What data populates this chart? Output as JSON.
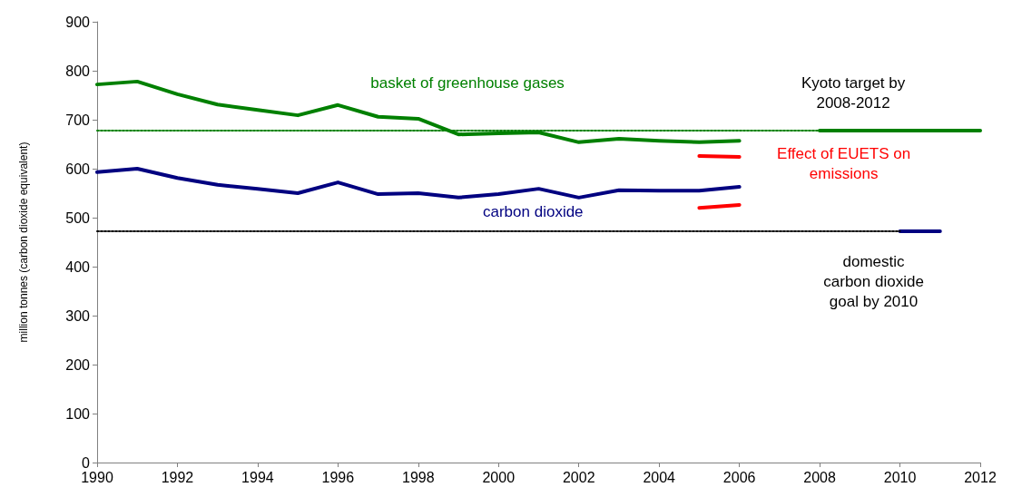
{
  "chart_data": {
    "type": "line",
    "ylabel": "million tonnes (carbon dioxide equivalent)",
    "xlim": [
      1990,
      2012
    ],
    "xticks": [
      1990,
      1992,
      1994,
      1996,
      1998,
      2000,
      2002,
      2004,
      2006,
      2008,
      2010,
      2012
    ],
    "ylim": [
      0,
      900
    ],
    "yticks": [
      0,
      100,
      200,
      300,
      400,
      500,
      600,
      700,
      800,
      900
    ],
    "grid": false,
    "marker": "none",
    "series": [
      {
        "name": "basket of greenhouse gases",
        "color": "#008000",
        "x": [
          1990,
          1991,
          1992,
          1993,
          1994,
          1995,
          1996,
          1997,
          1998,
          1999,
          2000,
          2001,
          2002,
          2003,
          2004,
          2005,
          2006
        ],
        "values": [
          772,
          778,
          752,
          731,
          720,
          709,
          730,
          706,
          702,
          670,
          672,
          674,
          654,
          661,
          657,
          654,
          657
        ]
      },
      {
        "name": "carbon dioxide",
        "color": "#000080",
        "x": [
          1990,
          1991,
          1992,
          1993,
          1994,
          1995,
          1996,
          1997,
          1998,
          1999,
          2000,
          2001,
          2002,
          2003,
          2004,
          2005,
          2006
        ],
        "values": [
          593,
          600,
          581,
          567,
          559,
          550,
          572,
          548,
          550,
          541,
          548,
          559,
          541,
          556,
          555,
          555,
          563
        ]
      },
      {
        "name": "Effect of EUETS on\nemissions",
        "color": "#ff0000",
        "x": [
          2005,
          2006
        ],
        "values": [
          626,
          624
        ]
      },
      {
        "color": "#ff0000",
        "x": [
          2005,
          2006
        ],
        "values": [
          520,
          526
        ]
      },
      {
        "name": "Kyoto target by\n2008-2012",
        "color": "#008000",
        "x": [
          2008,
          2012
        ],
        "values": [
          678,
          678
        ]
      },
      {
        "name": "domestic\ncarbon dioxide\ngoal by 2010",
        "color": "#000080",
        "x": [
          2010,
          2011
        ],
        "values": [
          472,
          472
        ]
      },
      {
        "color": "#008000",
        "x": [
          1990,
          2008
        ],
        "values": [
          678,
          678
        ],
        "line_style": "dotted"
      },
      {
        "color": "#000000",
        "x": [
          1990,
          2010
        ],
        "values": [
          472,
          472
        ],
        "line_style": "dotted"
      }
    ]
  }
}
